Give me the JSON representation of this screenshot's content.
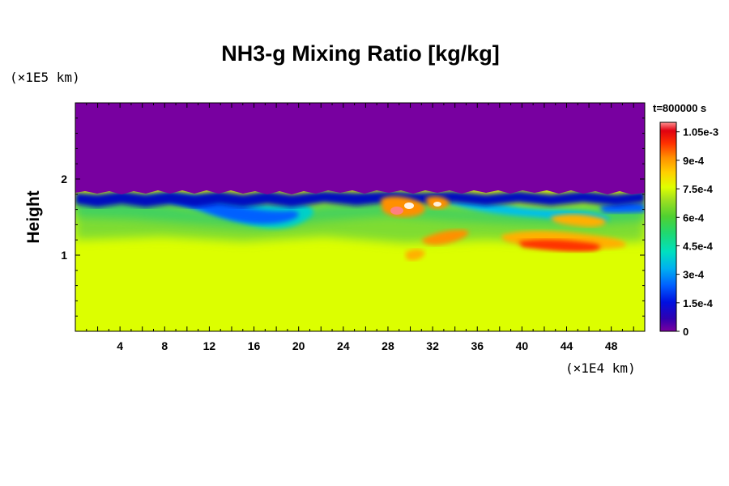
{
  "chart_data": {
    "type": "heatmap",
    "title": "NH3-g Mixing Ratio [kg/kg]",
    "ylabel": "Height",
    "y_units": "(×1E5 km)",
    "x_units": "(×1E4 km)",
    "time_label": "t=800000 s",
    "xlim": [
      0,
      51
    ],
    "ylim": [
      0,
      3
    ],
    "x_ticks": [
      "4",
      "8",
      "12",
      "16",
      "20",
      "24",
      "28",
      "32",
      "36",
      "40",
      "44",
      "48"
    ],
    "y_ticks": [
      "1",
      "2"
    ],
    "colorbar": {
      "min": 0,
      "max": 0.0011,
      "labels": [
        "0",
        "1.5e-4",
        "3e-4",
        "4.5e-4",
        "6e-4",
        "7.5e-4",
        "9e-4",
        "1.05e-3"
      ]
    },
    "field_summary": {
      "upper_region_value": 0,
      "lower_region_value": 0.00078,
      "mixing_layer_top_height": 1.78,
      "mixing_layer_bottom_height": 1.15
    }
  }
}
